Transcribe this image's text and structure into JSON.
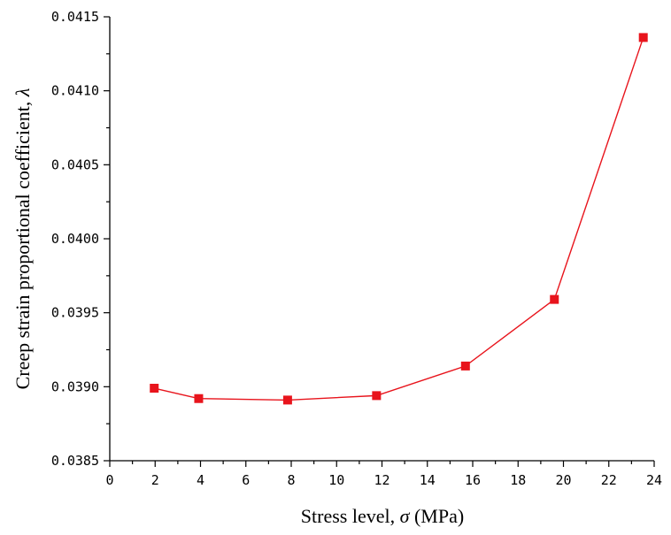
{
  "chart_data": {
    "type": "line",
    "title": "",
    "xlabel": {
      "prefix": "Stress level, ",
      "symbol": "σ",
      "suffix": " (MPa)"
    },
    "ylabel": {
      "prefix": "Creep strain proportional coefficient, ",
      "symbol": "λ"
    },
    "xlim": [
      0,
      24
    ],
    "ylim": [
      0.0385,
      0.0415
    ],
    "x_ticks": [
      0,
      2,
      4,
      6,
      8,
      10,
      12,
      14,
      16,
      18,
      20,
      22,
      24
    ],
    "y_ticks": [
      0.0385,
      0.039,
      0.0395,
      0.04,
      0.0405,
      0.041,
      0.0415
    ],
    "y_tick_labels": [
      "0.0385",
      "0.0390",
      "0.0395",
      "0.0400",
      "0.0405",
      "0.0410",
      "0.0415"
    ],
    "grid": false,
    "series": [
      {
        "name": "lambda",
        "color": "#e8141c",
        "marker": "square",
        "x": [
          1.96,
          3.92,
          7.84,
          11.76,
          15.68,
          19.6,
          23.52
        ],
        "values": [
          0.03899,
          0.03892,
          0.03891,
          0.03894,
          0.03914,
          0.03959,
          0.04136
        ]
      }
    ]
  }
}
